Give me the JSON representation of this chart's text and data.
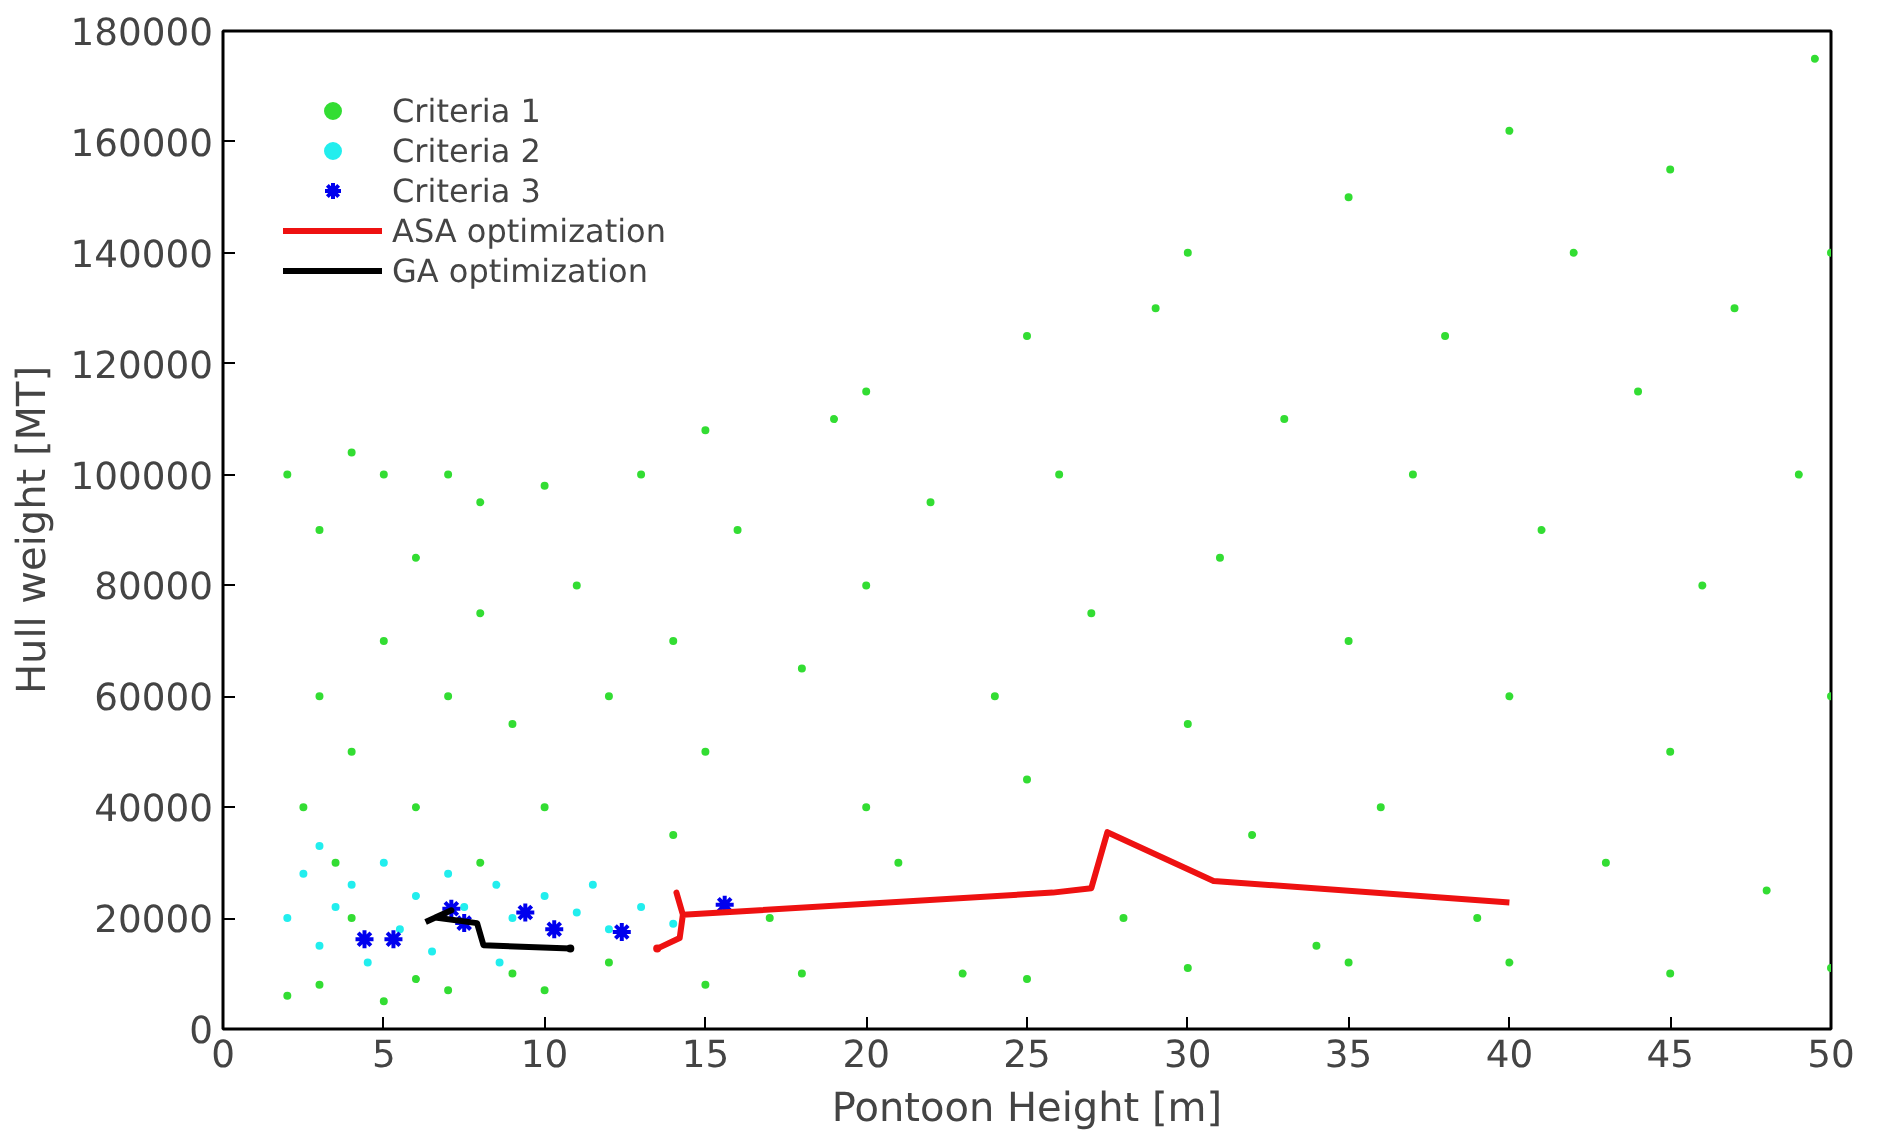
{
  "chart_data": {
    "type": "scatter",
    "xlabel": "Pontoon Height [m]",
    "ylabel": "Hull weight [MT]",
    "xlim": [
      0,
      50
    ],
    "ylim": [
      0,
      180000
    ],
    "xticks": [
      0,
      5,
      10,
      15,
      20,
      25,
      30,
      35,
      40,
      45,
      50
    ],
    "yticks": [
      0,
      20000,
      40000,
      60000,
      80000,
      100000,
      120000,
      140000,
      160000,
      180000
    ],
    "grid": false,
    "legend": "top left",
    "series": [
      {
        "name": "Criteria 1",
        "marker": "circle",
        "color": "#33dd33",
        "x": [
          2,
          2,
          2.5,
          3,
          3,
          3,
          3.5,
          4,
          4,
          4,
          5,
          5,
          5,
          6,
          6,
          6,
          7,
          7,
          7,
          8,
          8,
          8,
          9,
          9,
          10,
          10,
          10,
          11,
          12,
          12,
          13,
          14,
          14,
          15,
          15,
          15,
          16,
          17,
          18,
          18,
          19,
          20,
          20,
          20,
          21,
          22,
          23,
          24,
          25,
          25,
          25,
          26,
          27,
          28,
          29,
          30,
          30,
          30,
          31,
          32,
          33,
          34,
          35,
          35,
          35,
          36,
          37,
          38,
          39,
          40,
          40,
          40,
          41,
          42,
          43,
          44,
          45,
          45,
          45,
          46,
          47,
          48,
          49,
          49.5,
          50,
          50,
          50
        ],
        "values": [
          6000,
          100000,
          40000,
          8000,
          60000,
          90000,
          30000,
          104000,
          20000,
          50000,
          5000,
          70000,
          100000,
          9000,
          40000,
          85000,
          60000,
          7000,
          100000,
          30000,
          75000,
          95000,
          10000,
          55000,
          7000,
          98000,
          40000,
          80000,
          12000,
          60000,
          100000,
          35000,
          70000,
          8000,
          108000,
          50000,
          90000,
          20000,
          10000,
          65000,
          110000,
          115000,
          40000,
          80000,
          30000,
          95000,
          10000,
          60000,
          9000,
          125000,
          45000,
          100000,
          75000,
          20000,
          130000,
          11000,
          140000,
          55000,
          85000,
          35000,
          110000,
          15000,
          12000,
          150000,
          70000,
          40000,
          100000,
          125000,
          20000,
          12000,
          162000,
          60000,
          90000,
          140000,
          30000,
          115000,
          10000,
          155000,
          50000,
          80000,
          130000,
          25000,
          100000,
          175000,
          11000,
          140000,
          60000
        ]
      },
      {
        "name": "Criteria 2",
        "marker": "circle",
        "color": "#22eeee",
        "x": [
          2,
          2.5,
          3,
          3,
          3.5,
          4,
          4.5,
          5,
          5.5,
          6,
          6.5,
          7,
          7.5,
          8.6,
          8.5,
          9,
          10,
          11.5,
          11,
          12,
          13,
          14
        ],
        "values": [
          20000,
          28000,
          15000,
          33000,
          22000,
          26000,
          12000,
          30000,
          18000,
          24000,
          14000,
          28000,
          22000,
          12000,
          26000,
          20000,
          24000,
          26000,
          21000,
          18000,
          22000,
          19000
        ]
      },
      {
        "name": "Criteria 3",
        "marker": "cross",
        "color": "#0000ee",
        "x": [
          4.4,
          5.3,
          7.1,
          7.5,
          9.4,
          10.3,
          12.4,
          15.6
        ],
        "values": [
          16200,
          16200,
          21700,
          19100,
          21000,
          18000,
          17500,
          22400
        ]
      },
      {
        "name": "ASA optimization",
        "type": "line",
        "marker": "none",
        "color": "#ee1111",
        "x": [
          13.5,
          14.2,
          14.3,
          14.1,
          14.3,
          25.8,
          27.0,
          27.5,
          30.8,
          40.0
        ],
        "values": [
          14500,
          16400,
          20600,
          24600,
          20600,
          24600,
          25400,
          35500,
          26700,
          22800
        ]
      },
      {
        "name": "GA optimization",
        "type": "line",
        "marker": "none",
        "color": "#000000",
        "x": [
          6.3,
          7.1,
          6.6,
          7.9,
          8.1,
          10.8
        ],
        "values": [
          19300,
          21400,
          20100,
          19100,
          15100,
          14500
        ]
      },
      {
        "marker": "circle",
        "color": "#ee1111",
        "x": [
          13.5
        ],
        "values": [
          14500
        ]
      },
      {
        "marker": "circle",
        "color": "#000000",
        "x": [
          10.8
        ],
        "values": [
          14500
        ]
      }
    ]
  }
}
